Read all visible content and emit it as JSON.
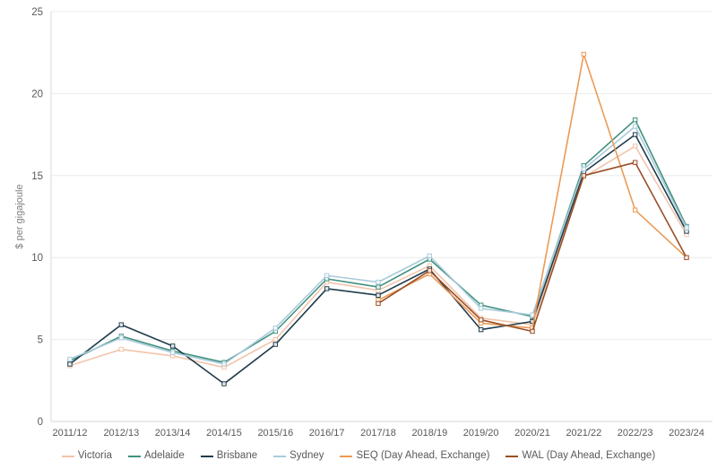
{
  "chart_data": {
    "type": "line",
    "title": "",
    "ylabel": "$ per gigajoule",
    "xlabel": "",
    "ylim": [
      0,
      25
    ],
    "yticks": [
      0,
      5,
      10,
      15,
      20,
      25
    ],
    "grid": "horizontal",
    "legend_position": "bottom",
    "categories": [
      "2011/12",
      "2012/13",
      "2013/14",
      "2014/15",
      "2015/16",
      "2016/17",
      "2017/18",
      "2018/19",
      "2019/20",
      "2020/21",
      "2021/22",
      "2022/23",
      "2023/24"
    ],
    "series": [
      {
        "name": "Victoria",
        "color": "#f2c4ab",
        "values": [
          3.4,
          4.4,
          4.0,
          3.3,
          5.0,
          8.5,
          8.0,
          9.5,
          6.3,
          5.9,
          14.9,
          16.8,
          11.4
        ]
      },
      {
        "name": "Adelaide",
        "color": "#41917f",
        "values": [
          3.7,
          5.2,
          4.3,
          3.6,
          5.5,
          8.7,
          8.2,
          9.9,
          7.1,
          6.4,
          15.6,
          18.4,
          11.9
        ]
      },
      {
        "name": "Brisbane",
        "color": "#1e3c4c",
        "values": [
          3.5,
          5.9,
          4.6,
          2.3,
          4.7,
          8.1,
          7.7,
          9.3,
          5.6,
          6.1,
          15.2,
          17.5,
          11.6
        ]
      },
      {
        "name": "Sydney",
        "color": "#a9cbdb",
        "values": [
          3.8,
          5.1,
          4.2,
          3.5,
          5.7,
          8.9,
          8.5,
          10.1,
          6.9,
          6.5,
          15.4,
          18.0,
          11.8
        ]
      },
      {
        "name": "SEQ (Day Ahead, Exchange)",
        "color": "#eb9b57",
        "values": [
          null,
          null,
          null,
          null,
          null,
          null,
          7.4,
          9.0,
          6.0,
          5.7,
          22.4,
          12.9,
          10.0
        ]
      },
      {
        "name": "WAL (Day Ahead, Exchange)",
        "color": "#9a4f27",
        "values": [
          null,
          null,
          null,
          null,
          null,
          null,
          7.2,
          9.2,
          6.2,
          5.5,
          15.0,
          15.8,
          10.0
        ]
      }
    ],
    "style_colors": {
      "grid": "#ececec",
      "axis_line": "#d9d9d9",
      "tick_text": "#595959",
      "axis_title_text": "#7f7f7f"
    }
  }
}
